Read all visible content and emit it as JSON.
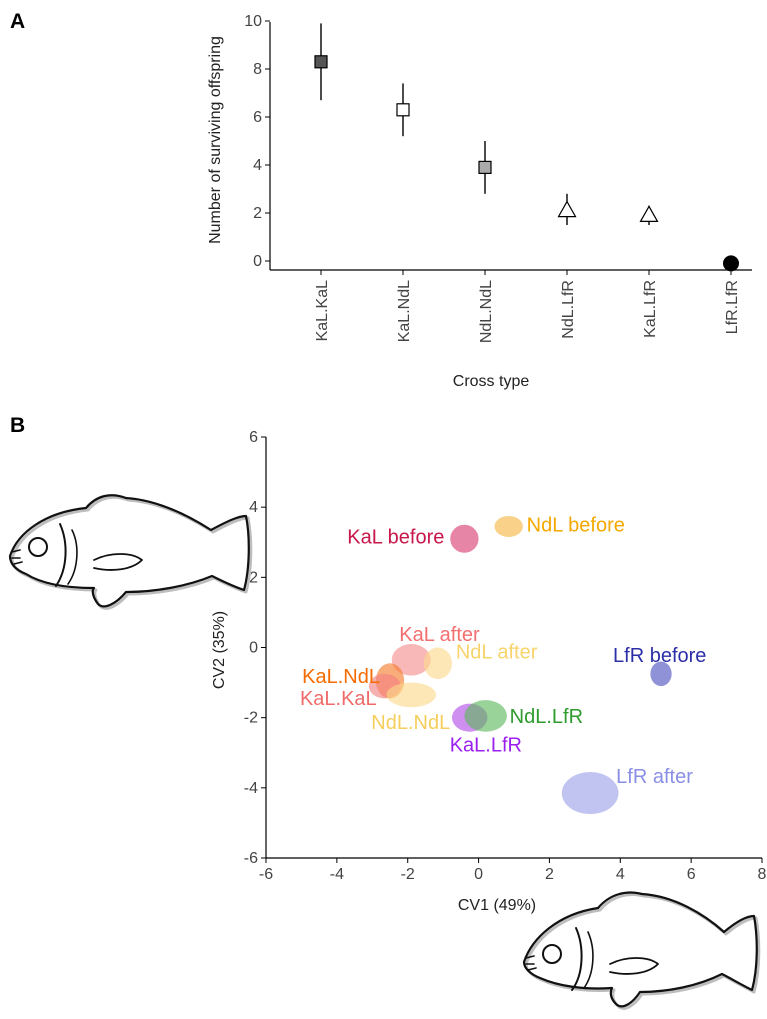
{
  "panels": {
    "a": "A",
    "b": "B"
  },
  "chart_data": [
    {
      "type": "scatter",
      "panel": "A",
      "title": "",
      "xlabel": "Cross type",
      "ylabel": "Number of surviving offspring",
      "ylim": [
        0,
        10
      ],
      "yticks": [
        "0",
        "2",
        "4",
        "6",
        "8",
        "10"
      ],
      "categories": [
        "KaL.KaL",
        "KaL.NdL",
        "NdL.NdL",
        "NdL.LfR",
        "KaL.LfR",
        "LfR.LfR"
      ],
      "values": [
        8.3,
        6.3,
        3.9,
        2.1,
        1.9,
        -0.1
      ],
      "error_low": [
        6.7,
        5.2,
        2.8,
        1.5,
        1.5,
        -0.1
      ],
      "error_high": [
        9.9,
        7.4,
        5.0,
        2.8,
        2.3,
        -0.1
      ],
      "markers": [
        "dark-gray-square",
        "white-square",
        "light-gray-square",
        "white-triangle",
        "white-triangle",
        "black-circle"
      ],
      "marker_colors": [
        "#555555",
        "#ffffff",
        "#aaaaaa",
        "#ffffff",
        "#ffffff",
        "#000000"
      ]
    },
    {
      "type": "scatter",
      "panel": "B",
      "title": "",
      "xlabel": "CV1 (49%)",
      "ylabel": "CV2 (35%)",
      "xlim": [
        -6,
        8
      ],
      "ylim": [
        -6,
        6
      ],
      "xticks": [
        "-6",
        "-4",
        "-2",
        "0",
        "2",
        "4",
        "6",
        "8"
      ],
      "yticks": [
        "-6",
        "-4",
        "-2",
        "0",
        "2",
        "4",
        "6"
      ],
      "groups": [
        {
          "name": "KaL before",
          "center": [
            -0.4,
            3.1
          ],
          "radii": [
            0.4,
            0.4
          ],
          "color": "#d63a6e"
        },
        {
          "name": "NdL before",
          "center": [
            0.85,
            3.45
          ],
          "radii": [
            0.4,
            0.3
          ],
          "color": "#f5b53f"
        },
        {
          "name": "KaL after",
          "center": [
            -1.9,
            -0.35
          ],
          "radii": [
            0.55,
            0.45
          ],
          "color": "#f58c8c"
        },
        {
          "name": "NdL after",
          "center": [
            -1.15,
            -0.45
          ],
          "radii": [
            0.4,
            0.45
          ],
          "color": "#fbd98a"
        },
        {
          "name": "KaL.NdL",
          "center": [
            -2.5,
            -0.95
          ],
          "radii": [
            0.4,
            0.5
          ],
          "color": "#f57a2a"
        },
        {
          "name": "KaL.KaL",
          "center": [
            -2.65,
            -1.1
          ],
          "radii": [
            0.45,
            0.35
          ],
          "color": "#f28080"
        },
        {
          "name": "NdL.NdL",
          "center": [
            -1.9,
            -1.35
          ],
          "radii": [
            0.7,
            0.35
          ],
          "color": "#fbd98a"
        },
        {
          "name": "KaL.LfR",
          "center": [
            -0.25,
            -2.0
          ],
          "radii": [
            0.5,
            0.4
          ],
          "color": "#b24ae6"
        },
        {
          "name": "NdL.LfR",
          "center": [
            0.2,
            -1.95
          ],
          "radii": [
            0.6,
            0.45
          ],
          "color": "#5cb85c"
        },
        {
          "name": "LfR before",
          "center": [
            5.15,
            -0.75
          ],
          "radii": [
            0.3,
            0.35
          ],
          "color": "#4a4fbf"
        },
        {
          "name": "LfR after",
          "center": [
            3.15,
            -4.15
          ],
          "radii": [
            0.8,
            0.6
          ],
          "color": "#9b9ee8"
        }
      ],
      "label_colors": {
        "KaL before": "#c8174a",
        "NdL before": "#f5a800",
        "KaL after": "#f46f6f",
        "NdL after": "#f7d46c",
        "KaL.NdL": "#f56b00",
        "KaL.KaL": "#f06a6a",
        "NdL.NdL": "#f5ce5c",
        "KaL.LfR": "#9b1ff0",
        "NdL.LfR": "#2e9b2e",
        "LfR before": "#2c2fa8",
        "LfR after": "#8a8fe6"
      }
    }
  ]
}
